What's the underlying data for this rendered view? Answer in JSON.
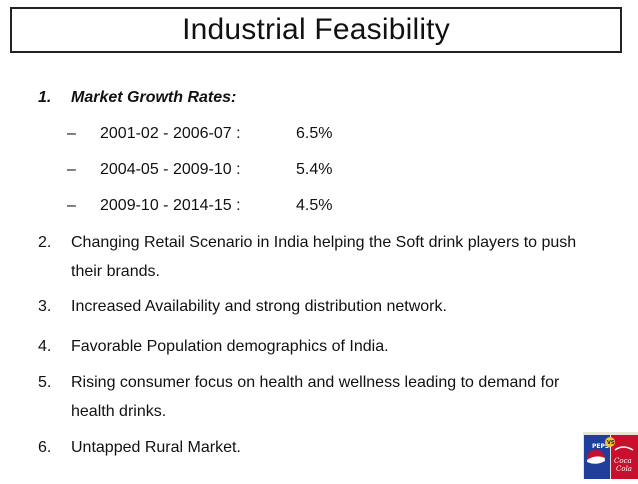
{
  "title": "Industrial Feasibility",
  "item1": {
    "number": "1.",
    "label": "Market Growth Rates:",
    "subitems": [
      {
        "dash": "–",
        "range": "2001-02 - 2006-07 :",
        "value": "6.5%"
      },
      {
        "dash": "–",
        "range": "2004-05 - 2009-10 :",
        "value": "5.4%"
      },
      {
        "dash": "–",
        "range": "2009-10 - 2014-15 :",
        "value": "4.5%"
      }
    ]
  },
  "items": [
    {
      "number": "2.",
      "lines": [
        "Changing Retail Scenario in India  helping the Soft drink players to push",
        "their brands."
      ]
    },
    {
      "number": "3.",
      "lines": [
        "Increased Availability and strong  distribution network."
      ]
    },
    {
      "number": "4.",
      "lines": [
        "Favorable Population demographics of India."
      ]
    },
    {
      "number": "5.",
      "lines": [
        "Rising consumer focus on health and wellness leading to demand for",
        "health drinks."
      ]
    },
    {
      "number": "6.",
      "lines": [
        "Untapped Rural Market."
      ]
    }
  ],
  "logo": {
    "icon": "pepsi-vs-coca-cola-logo",
    "colors": {
      "pepsi_blue": "#1f3f9a",
      "coke_red": "#c8102e"
    }
  }
}
